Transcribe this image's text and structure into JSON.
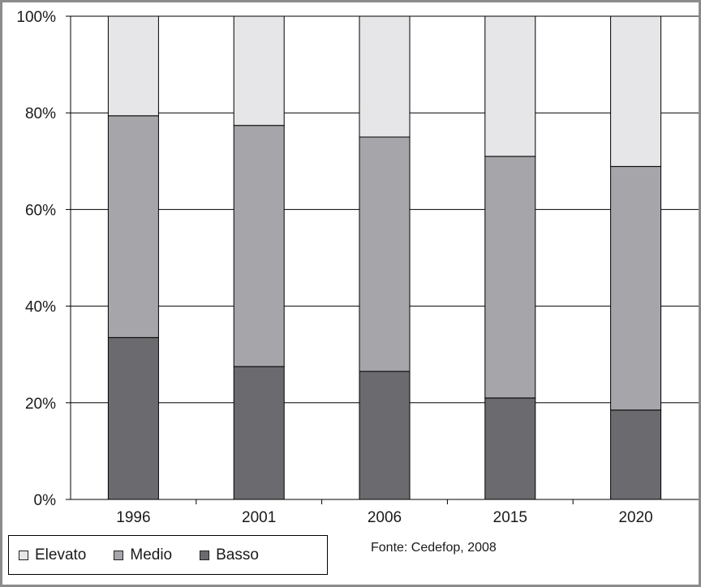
{
  "chart_data": {
    "type": "bar",
    "stacked": true,
    "categories": [
      "1996",
      "2001",
      "2006",
      "2015",
      "2020"
    ],
    "series": [
      {
        "name": "Basso",
        "values": [
          33.5,
          27.5,
          26.5,
          21.0,
          18.5
        ],
        "color": "#6b6b6f"
      },
      {
        "name": "Medio",
        "values": [
          45.9,
          49.9,
          48.5,
          50.0,
          50.4
        ],
        "color": "#a6a6aa"
      },
      {
        "name": "Elevato",
        "values": [
          20.6,
          22.6,
          25.0,
          29.0,
          31.1
        ],
        "color": "#e6e6e8"
      }
    ],
    "ylim": [
      0,
      100
    ],
    "yticks": [
      "0%",
      "20%",
      "40%",
      "60%",
      "80%",
      "100%"
    ],
    "grid": true,
    "legend_position": "bottom-left"
  },
  "legend": {
    "items": [
      {
        "label": "Elevato",
        "color": "#e6e6e8"
      },
      {
        "label": "Medio",
        "color": "#a6a6aa"
      },
      {
        "label": "Basso",
        "color": "#6b6b6f"
      }
    ]
  },
  "source_note": "Fonte: Cedefop, 2008"
}
